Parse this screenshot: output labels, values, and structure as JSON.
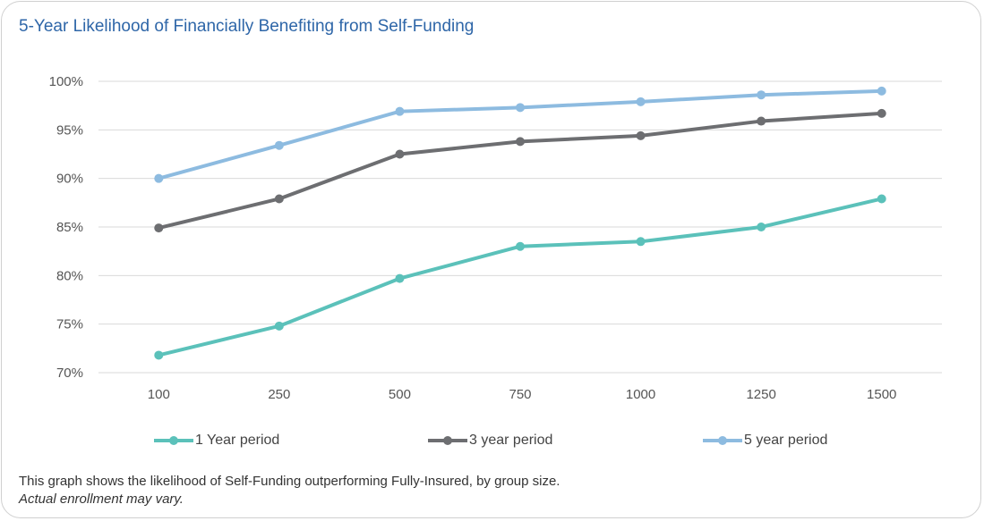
{
  "chart_data": {
    "type": "line",
    "title": "5-Year Likelihood of Financially Benefiting from Self-Funding",
    "xlabel": "",
    "ylabel": "",
    "categories": [
      "100",
      "250",
      "500",
      "750",
      "1000",
      "1250",
      "1500"
    ],
    "ylim": [
      70,
      100
    ],
    "yticks": [
      70,
      75,
      80,
      85,
      90,
      95,
      100
    ],
    "ytick_labels": [
      "70%",
      "75%",
      "80%",
      "85%",
      "90%",
      "95%",
      "100%"
    ],
    "grid": true,
    "legend_position": "bottom",
    "series": [
      {
        "name": "1 Year period",
        "color": "#5bc1ba",
        "values": [
          71.8,
          74.8,
          79.7,
          83.0,
          83.5,
          85.0,
          87.9
        ]
      },
      {
        "name": "3 year period",
        "color": "#6d6e71",
        "values": [
          84.9,
          87.9,
          92.5,
          93.8,
          94.4,
          95.9,
          96.7
        ]
      },
      {
        "name": "5 year period",
        "color": "#8dbbe0",
        "values": [
          90.0,
          93.4,
          96.9,
          97.3,
          97.9,
          98.6,
          99.0
        ]
      }
    ]
  },
  "note": {
    "line1": "This graph shows the likelihood of Self-Funding outperforming Fully-Insured, by group size.",
    "line2": "Actual enrollment may vary."
  }
}
